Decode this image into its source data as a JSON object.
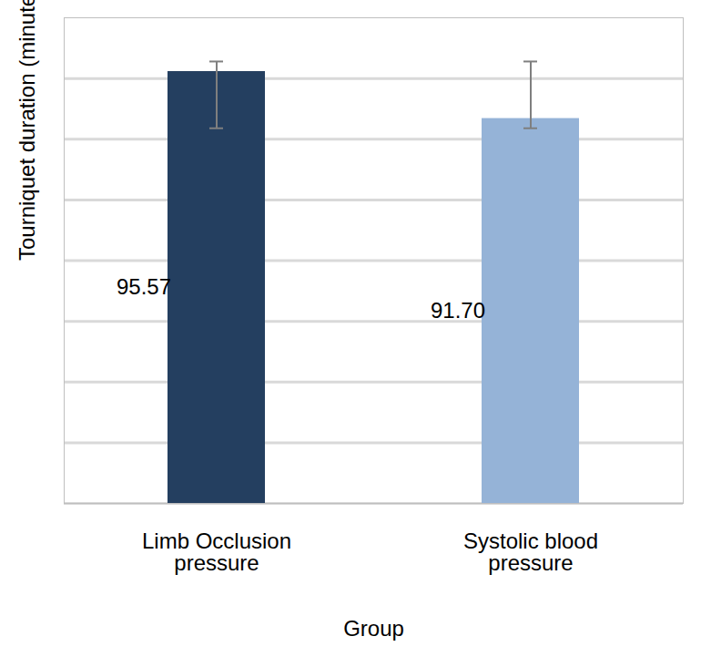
{
  "chart_data": {
    "type": "bar",
    "x_label": "Group",
    "y_label": "Tourniquet duration (minutes)",
    "categories": [
      "Limb Occlusion pressure",
      "Systolic blood pressure"
    ],
    "values": [
      95.57,
      91.7
    ],
    "value_labels": [
      "95.57",
      "91.70"
    ],
    "error_lower": [
      90.9,
      90.9
    ],
    "error_upper": [
      96.4,
      96.4
    ],
    "colors": [
      "#243f60",
      "#95b3d7"
    ],
    "ylim": [
      60,
      100
    ],
    "yticks": [
      60,
      65,
      70,
      75,
      80,
      85,
      90,
      95
    ],
    "grid": true,
    "data_labels": true,
    "tick_labels": "x"
  }
}
